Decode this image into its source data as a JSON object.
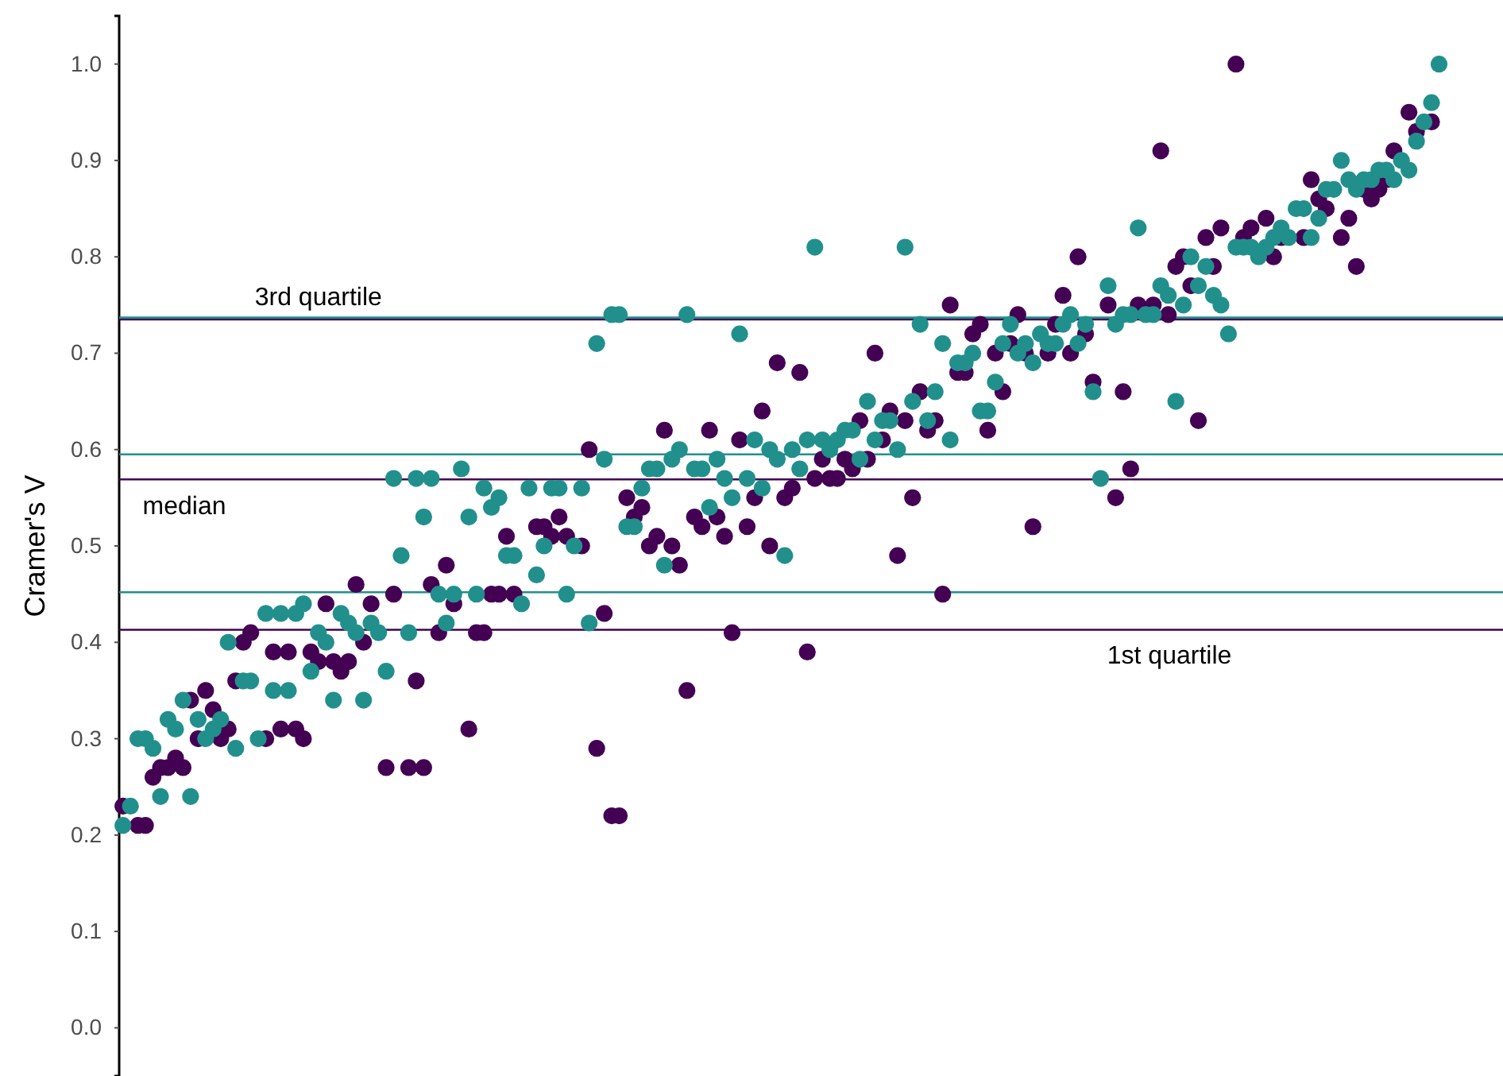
{
  "chart_data": {
    "type": "scatter",
    "ylabel": "Cramer's V",
    "tick_labels": "y",
    "grid": false,
    "marker": "circle",
    "ylim": [
      -0.05,
      1.05
    ],
    "yticks": [
      {
        "value": 0,
        "label": "0.0"
      },
      {
        "value": 0.1,
        "label": "0.1"
      },
      {
        "value": 0.2,
        "label": "0.2"
      },
      {
        "value": 0.3,
        "label": "0.3"
      },
      {
        "value": 0.4,
        "label": "0.4"
      },
      {
        "value": 0.5,
        "label": "0.5"
      },
      {
        "value": 0.6,
        "label": "0.6"
      },
      {
        "value": 0.7,
        "label": "0.7"
      },
      {
        "value": 0.8,
        "label": "0.8"
      },
      {
        "value": 0.9,
        "label": "0.9"
      },
      {
        "value": 1,
        "label": "1.0"
      }
    ],
    "categories": [
      null,
      null,
      null,
      null,
      null,
      null,
      null,
      null,
      null,
      null,
      null,
      null,
      null,
      null,
      null,
      null,
      null,
      null,
      null,
      null,
      null,
      null,
      null,
      null,
      null,
      null,
      null,
      null,
      null,
      null,
      null,
      null,
      null,
      null,
      null,
      null,
      null,
      null,
      null,
      null,
      null,
      null,
      null,
      null,
      null,
      null,
      null,
      null,
      null,
      null,
      null,
      null,
      null,
      null,
      null,
      null,
      null,
      null,
      null,
      null,
      null,
      null,
      null,
      null,
      null,
      null,
      null,
      null,
      null,
      null,
      null,
      null,
      null,
      null,
      null,
      null,
      null,
      null,
      null,
      null,
      null,
      null,
      null,
      null,
      null,
      null,
      null,
      null,
      null,
      null,
      null,
      null,
      null,
      null,
      null,
      null,
      null,
      null,
      null,
      null,
      null,
      null,
      null,
      null,
      null,
      null,
      null,
      null,
      null,
      null,
      null,
      null,
      null,
      null,
      null,
      null,
      null,
      null,
      null,
      null,
      null,
      null,
      null,
      null,
      null,
      null,
      null,
      null,
      null,
      null,
      null,
      null,
      null,
      null,
      null,
      null,
      null,
      null,
      null,
      null,
      null,
      null,
      null,
      null,
      null,
      null,
      null,
      null,
      null,
      null,
      null,
      null,
      null,
      null,
      null,
      null,
      null,
      null,
      null,
      null,
      null,
      null,
      null,
      null,
      null,
      null,
      null,
      null,
      null,
      null,
      null,
      null,
      null,
      null,
      null,
      null,
      null,
      null,
      null,
      null,
      null,
      null,
      null,
      null
    ],
    "series": [
      {
        "color": "#440154",
        "values": [
          0.23,
          null,
          0.21,
          0.21,
          0.26,
          0.27,
          0.27,
          0.28,
          0.27,
          0.34,
          0.3,
          0.35,
          0.33,
          0.3,
          0.31,
          0.36,
          0.4,
          0.41,
          null,
          0.3,
          0.39,
          0.31,
          0.39,
          0.31,
          0.3,
          0.39,
          0.38,
          0.44,
          0.38,
          0.37,
          0.38,
          0.46,
          0.4,
          0.44,
          null,
          0.27,
          0.45,
          null,
          0.27,
          0.36,
          0.27,
          0.46,
          0.41,
          0.48,
          0.44,
          null,
          0.31,
          0.41,
          0.41,
          0.45,
          0.45,
          0.51,
          0.45,
          null,
          null,
          0.52,
          0.52,
          0.51,
          0.53,
          0.51,
          null,
          0.5,
          0.6,
          0.29,
          0.43,
          0.22,
          0.22,
          0.55,
          0.53,
          0.54,
          0.5,
          0.51,
          0.62,
          0.5,
          0.48,
          0.35,
          0.53,
          0.52,
          0.62,
          0.53,
          0.51,
          0.41,
          0.61,
          0.52,
          0.55,
          0.64,
          0.5,
          0.69,
          0.55,
          0.56,
          0.68,
          0.39,
          0.57,
          0.59,
          0.57,
          0.57,
          0.59,
          0.58,
          0.63,
          0.59,
          0.7,
          0.61,
          0.64,
          0.49,
          0.63,
          0.55,
          0.66,
          0.62,
          0.63,
          0.45,
          0.75,
          0.68,
          0.68,
          0.72,
          0.73,
          0.62,
          0.7,
          0.66,
          0.71,
          0.74,
          0.7,
          0.52,
          null,
          0.7,
          0.73,
          0.76,
          0.7,
          0.8,
          0.72,
          0.67,
          null,
          0.75,
          0.55,
          0.66,
          0.58,
          0.75,
          null,
          0.75,
          0.91,
          0.74,
          0.79,
          0.8,
          0.77,
          0.63,
          0.82,
          0.79,
          0.83,
          null,
          1.0,
          0.82,
          0.83,
          null,
          0.84,
          0.8,
          0.82,
          null,
          null,
          0.82,
          0.88,
          0.86,
          0.85,
          null,
          0.82,
          0.84,
          0.79,
          0.87,
          0.86,
          0.87,
          0.88,
          0.91,
          null,
          0.95,
          0.93,
          null,
          0.94,
          null,
          null,
          null,
          null,
          null,
          null,
          null,
          null,
          null
        ]
      },
      {
        "color": "#21908c",
        "values": [
          0.21,
          0.23,
          0.3,
          0.3,
          0.29,
          0.24,
          0.32,
          0.31,
          0.34,
          0.24,
          0.32,
          0.3,
          0.31,
          0.32,
          0.4,
          0.29,
          0.36,
          0.36,
          0.3,
          0.43,
          0.35,
          0.43,
          0.35,
          0.43,
          0.44,
          0.37,
          0.41,
          0.4,
          0.34,
          0.43,
          0.42,
          0.41,
          0.34,
          0.42,
          0.41,
          0.37,
          0.57,
          0.49,
          0.41,
          0.57,
          0.53,
          0.57,
          0.45,
          0.42,
          0.45,
          0.58,
          0.53,
          0.45,
          0.56,
          0.54,
          0.55,
          0.49,
          0.49,
          0.44,
          0.56,
          0.47,
          0.5,
          0.56,
          0.56,
          0.45,
          0.5,
          0.56,
          0.42,
          0.71,
          0.59,
          0.74,
          0.74,
          0.52,
          0.52,
          0.56,
          0.58,
          0.58,
          0.48,
          0.59,
          0.6,
          0.74,
          0.58,
          0.58,
          0.54,
          0.59,
          0.57,
          0.55,
          0.72,
          0.57,
          0.61,
          0.56,
          0.6,
          0.59,
          0.49,
          0.6,
          0.58,
          0.61,
          0.81,
          0.61,
          0.6,
          0.61,
          0.62,
          0.62,
          0.59,
          0.65,
          0.61,
          0.63,
          0.63,
          0.6,
          0.81,
          0.65,
          0.73,
          0.63,
          0.66,
          0.71,
          0.61,
          0.69,
          0.69,
          0.7,
          0.64,
          0.64,
          0.67,
          0.71,
          0.73,
          0.7,
          0.71,
          0.69,
          0.72,
          0.71,
          0.71,
          0.73,
          0.74,
          0.71,
          0.73,
          0.66,
          0.57,
          0.77,
          0.73,
          0.74,
          0.74,
          0.83,
          0.74,
          0.74,
          0.77,
          0.76,
          0.65,
          0.75,
          0.8,
          0.77,
          0.79,
          0.76,
          0.75,
          0.72,
          0.81,
          0.81,
          0.81,
          0.8,
          0.81,
          0.82,
          0.83,
          0.82,
          0.85,
          0.85,
          0.82,
          0.84,
          0.87,
          0.87,
          0.9,
          0.88,
          0.87,
          0.88,
          0.88,
          0.89,
          0.89,
          0.88,
          0.9,
          0.89,
          0.92,
          0.94,
          0.96,
          1.0,
          null,
          null,
          null,
          null,
          null,
          null,
          null,
          null
        ]
      }
    ],
    "ref_lines": [
      {
        "axis": "y",
        "value": 0.735,
        "color": "#440154",
        "label": "3rd quartile"
      },
      {
        "axis": "y",
        "value": 0.737,
        "color": "#21908c"
      },
      {
        "axis": "y",
        "value": 0.595,
        "color": "#21908c"
      },
      {
        "axis": "y",
        "value": 0.569,
        "color": "#440154",
        "label": "median"
      },
      {
        "axis": "y",
        "value": 0.452,
        "color": "#21908c"
      },
      {
        "axis": "y",
        "value": 0.413,
        "color": "#440154",
        "label": "1st quartile"
      }
    ]
  }
}
